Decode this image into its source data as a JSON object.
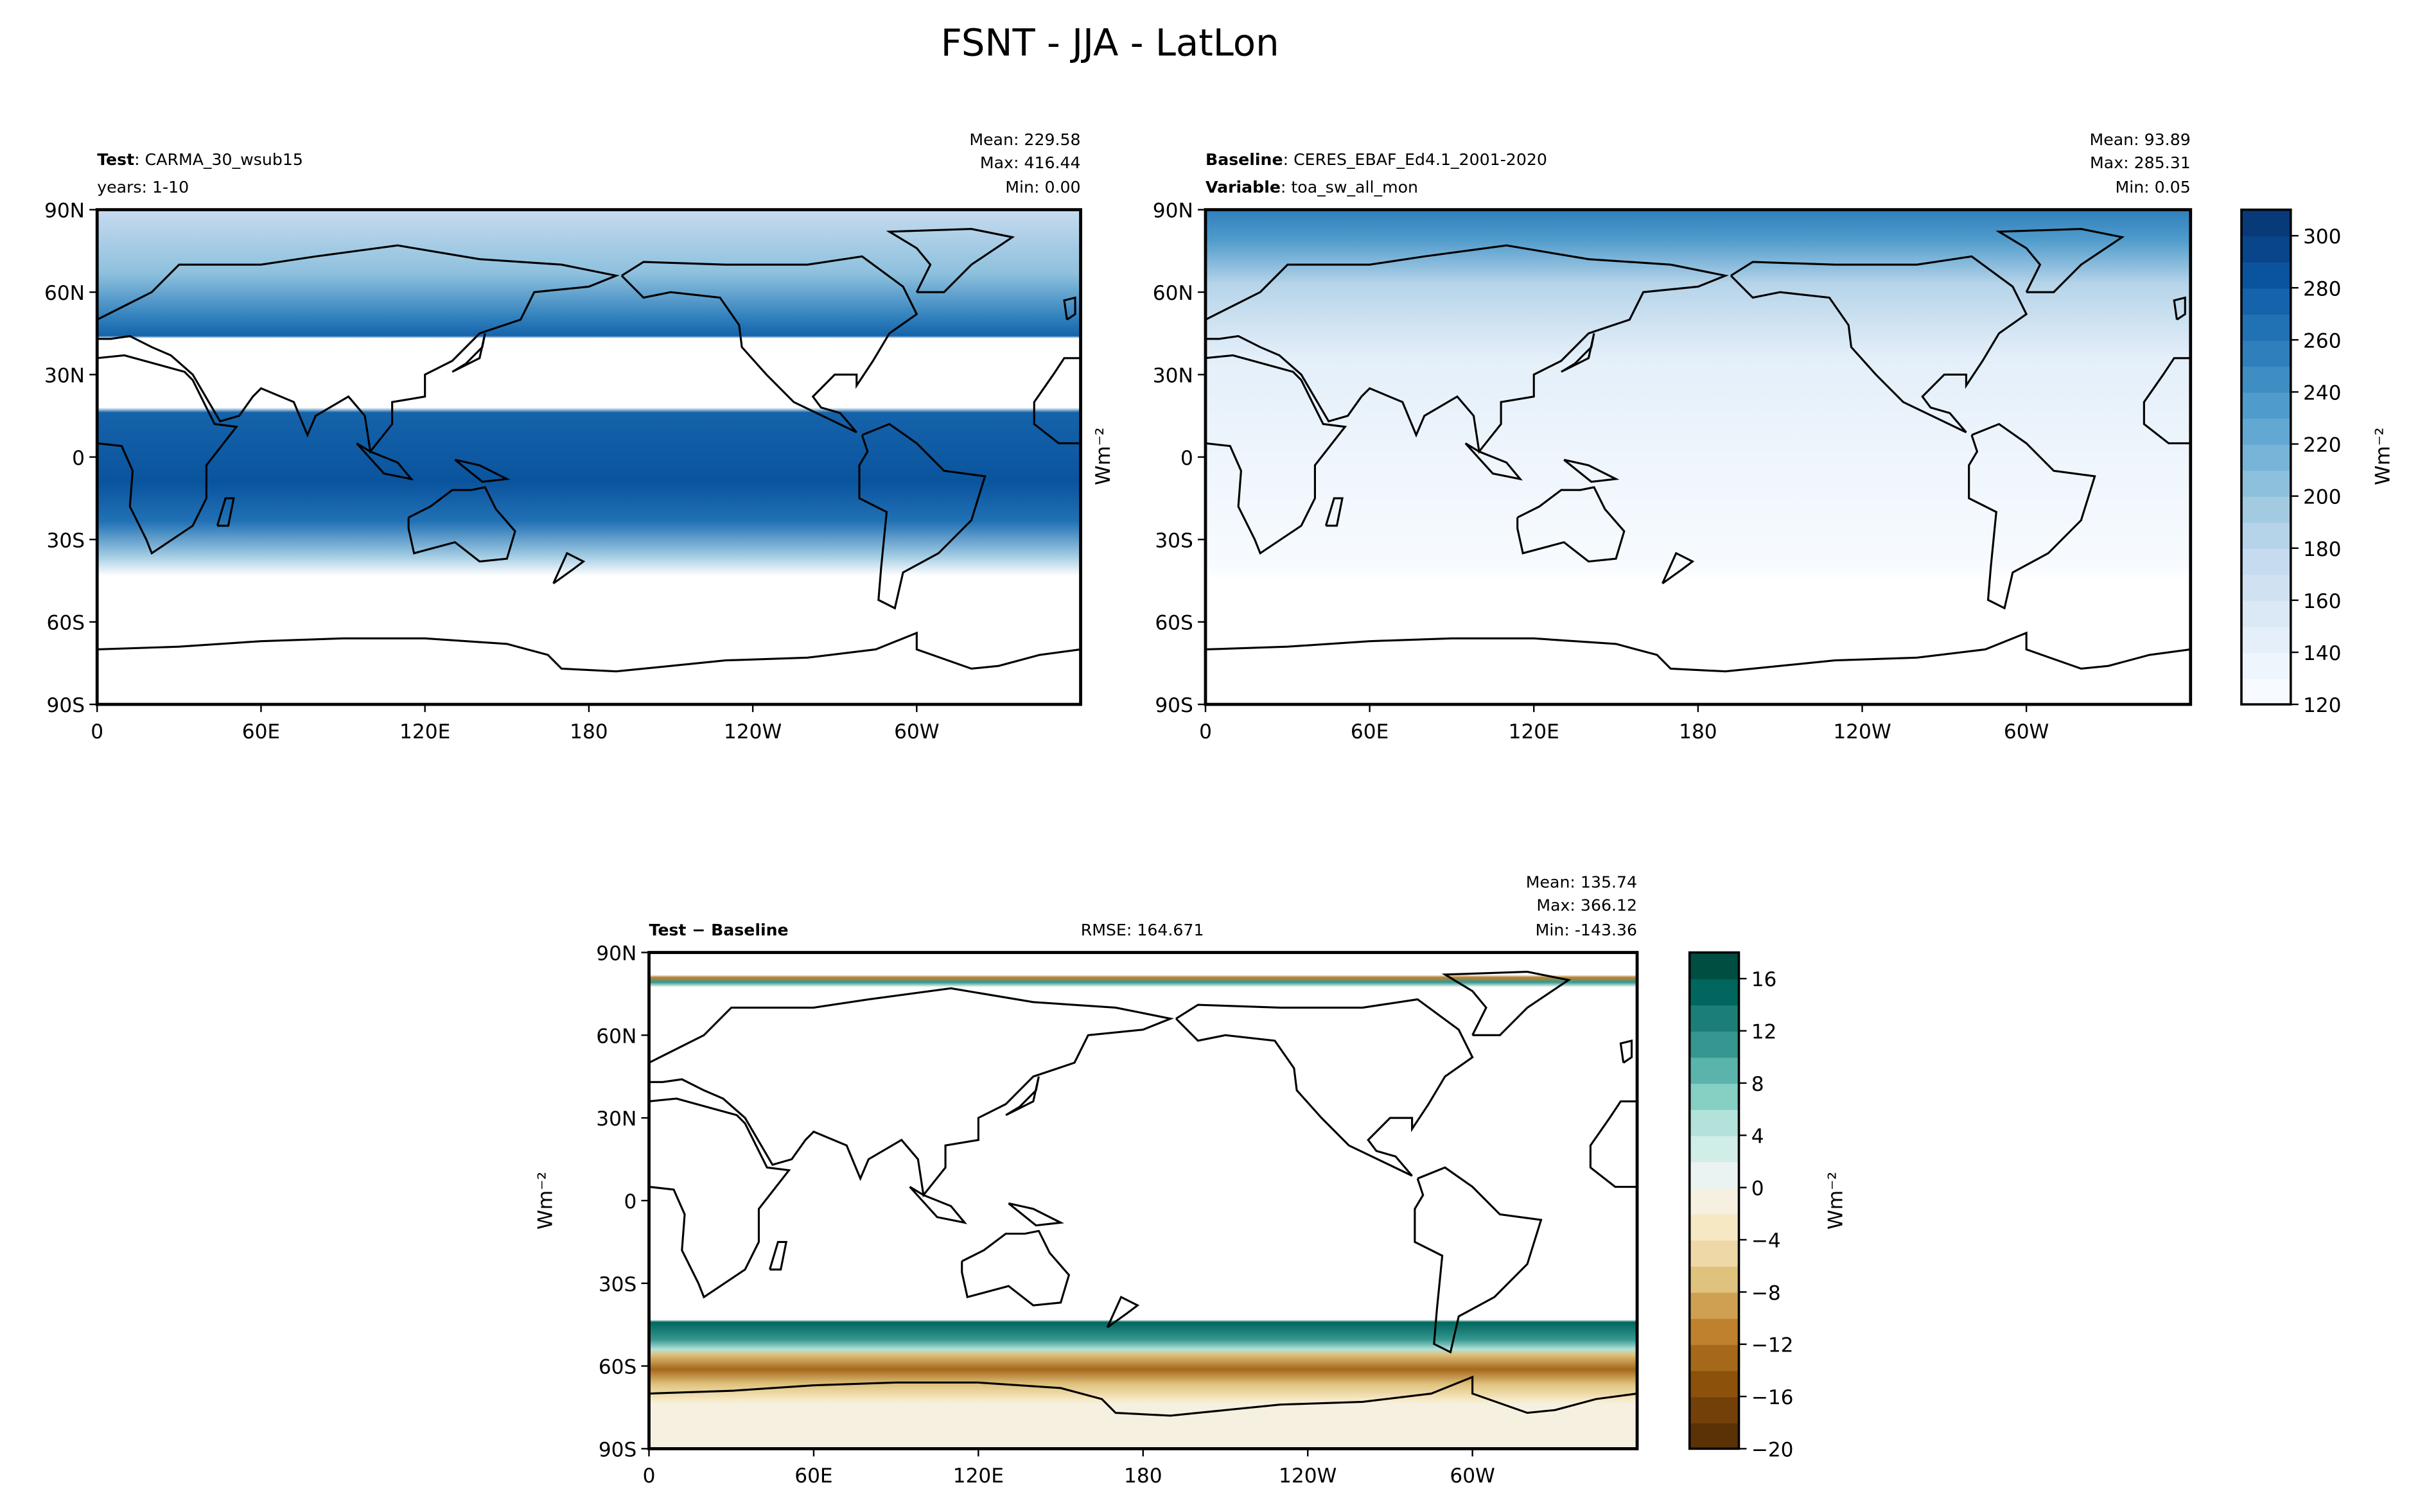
{
  "title": "FSNT - JJA - LatLon",
  "chart_data": [
    {
      "type": "heatmap",
      "panel": "test",
      "label_bold": "Test",
      "label_text": "CARMA_30_wsub15",
      "subtitle": "years: 1-10",
      "stats": {
        "mean": "Mean: 229.58",
        "max": "Max: 416.44",
        "min": "Min:  0.00"
      },
      "y_ticks": [
        "90N",
        "60N",
        "30N",
        "0",
        "30S",
        "60S",
        "90S"
      ],
      "x_ticks": [
        "0",
        "60E",
        "120E",
        "180",
        "120W",
        "60W"
      ],
      "xlim": [
        0,
        360
      ],
      "ylim": [
        -90,
        90
      ],
      "colormap": "Blues"
    },
    {
      "type": "heatmap",
      "panel": "baseline",
      "label_bold": "Baseline",
      "label_text": "CERES_EBAF_Ed4.1_2001-2020",
      "label2_bold": "Variable",
      "label2_text": "toa_sw_all_mon",
      "stats": {
        "mean": "Mean: 93.89",
        "max": "Max: 285.31",
        "min": "Min:  0.05"
      },
      "y_ticks": [
        "90N",
        "60N",
        "30N",
        "0",
        "30S",
        "60S",
        "90S"
      ],
      "x_ticks": [
        "0",
        "60E",
        "120E",
        "180",
        "120W",
        "60W"
      ],
      "xlim": [
        0,
        360
      ],
      "ylim": [
        -90,
        90
      ],
      "colormap": "Blues",
      "side_unit": "Wm⁻²"
    },
    {
      "type": "heatmap",
      "panel": "difference",
      "label_bold": "Test − Baseline",
      "rmse": "RMSE: 164.671",
      "stats": {
        "mean": "Mean: 135.74",
        "max": "Max: 366.12",
        "min": "Min: -143.36"
      },
      "y_ticks": [
        "90N",
        "60N",
        "30N",
        "0",
        "30S",
        "60S",
        "90S"
      ],
      "x_ticks": [
        "0",
        "60E",
        "120E",
        "180",
        "120W",
        "60W"
      ],
      "xlim": [
        0,
        360
      ],
      "ylim": [
        -90,
        90
      ],
      "colormap": "BrBG",
      "side_unit": "Wm⁻²"
    }
  ],
  "colorbars": [
    {
      "name": "test-baseline-colorbar",
      "range": [
        120,
        310
      ],
      "step": 10,
      "ticks": [
        "120",
        "140",
        "160",
        "180",
        "200",
        "220",
        "240",
        "260",
        "280",
        "300"
      ],
      "tick_values": [
        120,
        140,
        160,
        180,
        200,
        220,
        240,
        260,
        280,
        300
      ],
      "label": "Wm⁻²",
      "colors": [
        "#f7fbff",
        "#eef5fc",
        "#e4eff9",
        "#dbe9f6",
        "#d0e2f2",
        "#c6dbef",
        "#b6d4e9",
        "#a2cbe2",
        "#8dc0dd",
        "#77b4d8",
        "#62a8d2",
        "#4f9bcb",
        "#3e8ec4",
        "#2f7fbc",
        "#2171b5",
        "#1563aa",
        "#0a549e",
        "#08458a",
        "#083a7a"
      ]
    },
    {
      "name": "difference-colorbar",
      "range": [
        -20,
        18
      ],
      "step": 2,
      "ticks": [
        "−20",
        "−16",
        "−12",
        "−8",
        "−4",
        "0",
        "4",
        "8",
        "12",
        "16"
      ],
      "tick_values": [
        -20,
        -16,
        -12,
        -8,
        -4,
        0,
        4,
        8,
        12,
        16
      ],
      "label": "Wm⁻²",
      "colors": [
        "#5a3206",
        "#744009",
        "#8c510a",
        "#a6681a",
        "#bf812d",
        "#d0a052",
        "#dfc27d",
        "#eed8a8",
        "#f6e8c3",
        "#f5f0e0",
        "#eaf3f1",
        "#d0ede8",
        "#b3e2da",
        "#86cfc3",
        "#5ab4ac",
        "#35978f",
        "#1b7f77",
        "#01665e",
        "#004d42"
      ]
    }
  ]
}
